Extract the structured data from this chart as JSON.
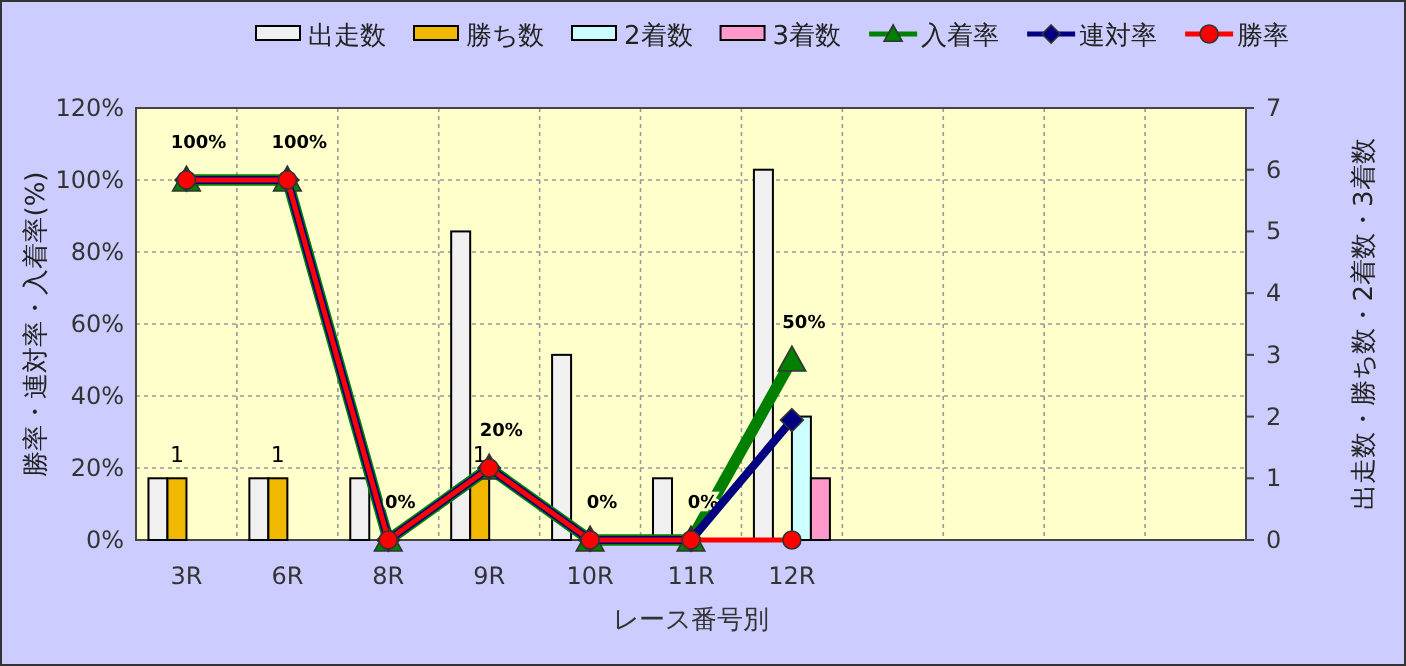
{
  "chart_data": {
    "type": "bar",
    "xlabel": "レース番号別",
    "ylabel": "勝率・連対率・入着率(%)",
    "y2label": "出走数・勝ち数・2着数・3着数",
    "categories": [
      "3R",
      "6R",
      "8R",
      "9R",
      "10R",
      "11R",
      "12R",
      null,
      null,
      null,
      null
    ],
    "series": [
      {
        "name": "出走数",
        "axis": "y2",
        "color": "#f0f0f0",
        "values": [
          1,
          1,
          1,
          5,
          3,
          1,
          6,
          null,
          null,
          null,
          null
        ]
      },
      {
        "name": "勝ち数",
        "axis": "y2",
        "color": "#f0b800",
        "values": [
          1,
          1,
          0,
          1,
          0,
          0,
          0,
          null,
          null,
          null,
          null
        ],
        "value_labels": [
          "1",
          "1",
          null,
          "1",
          null,
          null,
          null,
          null,
          null,
          null,
          null
        ]
      },
      {
        "name": "2着数",
        "axis": "y2",
        "color": "#ccffff",
        "values": [
          0,
          0,
          0,
          0,
          0,
          0,
          2,
          null,
          null,
          null,
          null
        ]
      },
      {
        "name": "3着数",
        "axis": "y2",
        "color": "#ff99cc",
        "values": [
          0,
          0,
          0,
          0,
          0,
          0,
          1,
          null,
          null,
          null,
          null
        ]
      },
      {
        "name": "入着率",
        "type": "line",
        "color": "#008000",
        "marker": "triangle",
        "values": [
          100,
          100,
          0,
          20,
          0,
          0,
          50,
          null,
          null,
          null,
          null
        ],
        "value_labels": [
          "100%",
          "100%",
          "0%",
          "20%",
          "0%",
          "0%",
          "50%",
          null,
          null,
          null,
          null
        ]
      },
      {
        "name": "連対率",
        "type": "line",
        "color": "#000080",
        "marker": "diamond",
        "values": [
          100,
          100,
          0,
          20,
          0,
          0,
          33.3,
          null,
          null,
          null,
          null
        ]
      },
      {
        "name": "勝率",
        "type": "line",
        "color": "#ff0000",
        "marker": "circle",
        "values": [
          100,
          100,
          0,
          20,
          0,
          0,
          0,
          null,
          null,
          null,
          null
        ]
      }
    ],
    "ylim": [
      0,
      120
    ],
    "yticks": [
      {
        "value": 0,
        "label": "0%"
      },
      {
        "value": 20,
        "label": "20%"
      },
      {
        "value": 40,
        "label": "40%"
      },
      {
        "value": 60,
        "label": "60%"
      },
      {
        "value": 80,
        "label": "80%"
      },
      {
        "value": 100,
        "label": "100%"
      },
      {
        "value": 120,
        "label": "120%"
      }
    ],
    "y2lim": [
      0,
      7
    ],
    "y2ticks": [
      0,
      1,
      2,
      3,
      4,
      5,
      6,
      7
    ],
    "grid": true,
    "legend": "top"
  }
}
